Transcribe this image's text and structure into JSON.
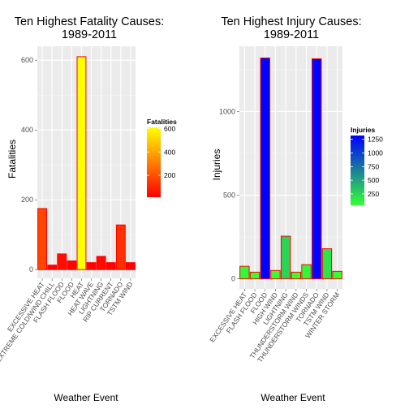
{
  "chart_data": [
    {
      "type": "bar",
      "title_line1": "Ten Highest Fatality Causes:",
      "title_line2": "1989-2011",
      "xlabel": "Weather Event",
      "ylabel": "Fatalities",
      "categories": [
        "EXCESSIVE HEAT",
        "EXTREME COLD/WIND CHILL",
        "FLASH FLOOD",
        "FLOOD",
        "HEAT",
        "HEAT WAVE",
        "LIGHTNING",
        "RIP CURRENT",
        "TORNADO",
        "TSTM WIND"
      ],
      "values": [
        175,
        13,
        45,
        25,
        610,
        20,
        38,
        20,
        128,
        20
      ],
      "ylim": [
        -25,
        640
      ],
      "yticks": [
        0,
        200,
        400,
        600
      ],
      "legend_title": "Fatalities",
      "legend_ticks": [
        200,
        400,
        600
      ],
      "legend_range": [
        13,
        610
      ],
      "grad_low": "#ff0000",
      "grad_high": "#ffff00",
      "bar_border": "#ff0000",
      "grid": true,
      "panel_bg": "#ebebeb"
    },
    {
      "type": "bar",
      "title_line1": "Ten Highest Injury Causes:",
      "title_line2": "1989-2011",
      "xlabel": "Weather Event",
      "ylabel": "Injuries",
      "categories": [
        "EXCESSIVE HEAT",
        "FLASH FLOOD",
        "FLOOD",
        "HIGH WIND",
        "LIGHTNING",
        "THUNDERSTORM WIND",
        "THUNDERSTORM WINDS",
        "TORNADO",
        "TSTM WIND",
        "WINTER STORM"
      ],
      "values": [
        75,
        40,
        1320,
        50,
        255,
        40,
        85,
        1315,
        180,
        45
      ],
      "ylim": [
        -60,
        1390
      ],
      "yticks": [
        0,
        500,
        1000
      ],
      "legend_title": "Injuries",
      "legend_ticks": [
        250,
        500,
        750,
        1000,
        1250
      ],
      "legend_range": [
        40,
        1320
      ],
      "grad_low": "#33ff33",
      "grad_high": "#0000ff",
      "bar_border": "#ff0000",
      "grid": true,
      "panel_bg": "#ebebeb"
    }
  ]
}
